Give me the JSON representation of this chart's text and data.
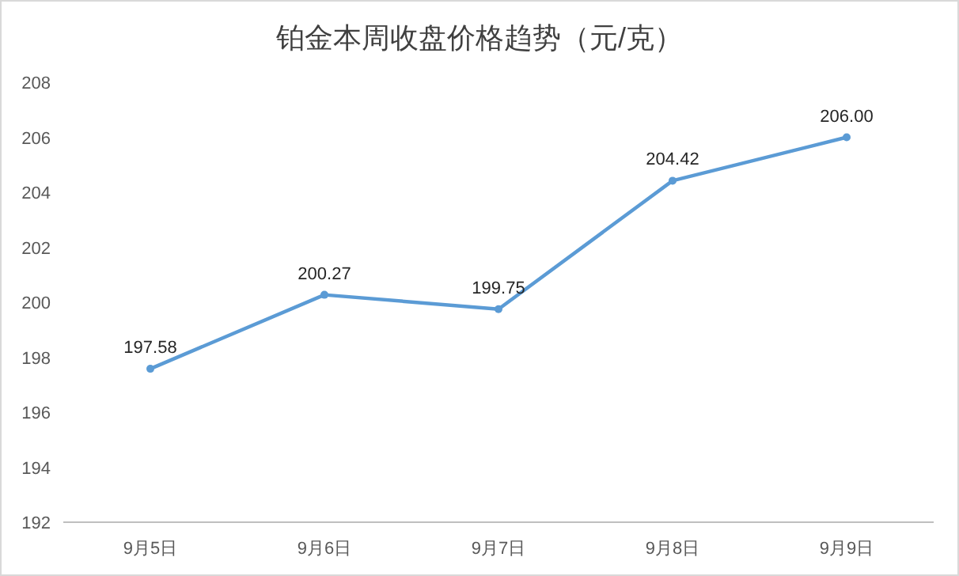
{
  "chart_data": {
    "type": "line",
    "title": "铂金本周收盘价格趋势（元/克）",
    "categories": [
      "9月5日",
      "9月6日",
      "9月7日",
      "9月8日",
      "9月9日"
    ],
    "series": [
      {
        "color": "#5b9bd5",
        "values": [
          197.58,
          200.27,
          199.75,
          204.42,
          206.0
        ]
      }
    ],
    "value_labels": [
      "197.58",
      "200.27",
      "199.75",
      "204.42",
      "206.00"
    ],
    "ylim": [
      192,
      208
    ],
    "yticks": [
      192,
      194,
      196,
      198,
      200,
      202,
      204,
      206,
      208
    ],
    "marker": "circle",
    "line_style": "solid"
  }
}
